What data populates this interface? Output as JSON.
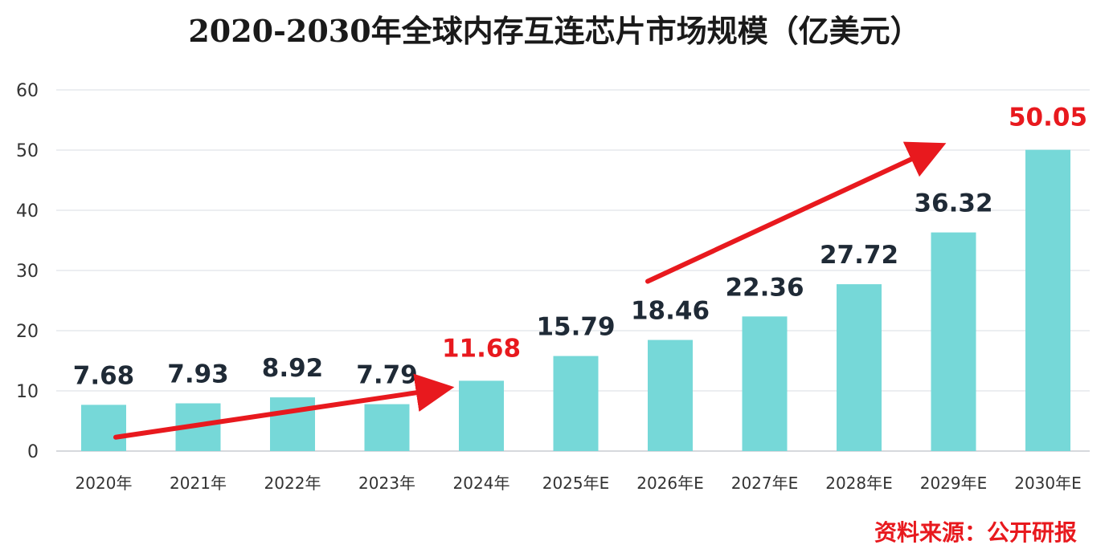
{
  "chart_data": {
    "type": "bar",
    "title": "2020-2030年全球内存互连芯片市场规模（亿美元）",
    "categories": [
      "2020年",
      "2021年",
      "2022年",
      "2023年",
      "2024年",
      "2025年E",
      "2026年E",
      "2027年E",
      "2028年E",
      "2029年E",
      "2030年E"
    ],
    "values": [
      7.68,
      7.93,
      8.92,
      7.79,
      11.68,
      15.79,
      18.46,
      22.36,
      27.72,
      36.32,
      50.05
    ],
    "value_labels": [
      "7.68",
      "7.93",
      "8.92",
      "7.79",
      "11.68",
      "15.79",
      "18.46",
      "22.36",
      "27.72",
      "36.32",
      "50.05"
    ],
    "highlighted_labels": [
      "11.68",
      "50.05"
    ],
    "ylim": [
      0,
      60
    ],
    "yticks": [
      "0",
      "10",
      "20",
      "30",
      "40",
      "50",
      "60"
    ],
    "xlabel": "",
    "ylabel": "",
    "grid": true,
    "legend": "none",
    "annotations": [
      "trend-arrow 2020年→2024年",
      "trend-arrow 2026年E→2030年E"
    ],
    "colors": {
      "bar": "#76d8d8",
      "highlight": "#e8191e",
      "arrow": "#e8191e",
      "label": "#1f2a36"
    }
  },
  "source_note": "资料来源：公开研报"
}
